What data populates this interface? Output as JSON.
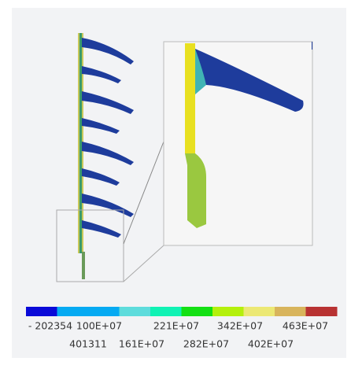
{
  "legend": {
    "colors": [
      "#0a0ad8",
      "#05aaf2",
      "#05aaf2",
      "#5edcdc",
      "#10f2b4",
      "#14e014",
      "#b4f00c",
      "#ece874",
      "#d8b45c",
      "#b83232"
    ],
    "labels_top": [
      "- 202354",
      "100E+07",
      "221E+07",
      "342E+07",
      "463E+07"
    ],
    "labels_bottom": [
      "401311",
      "161E+07",
      "282E+07",
      "402E+07"
    ]
  }
}
